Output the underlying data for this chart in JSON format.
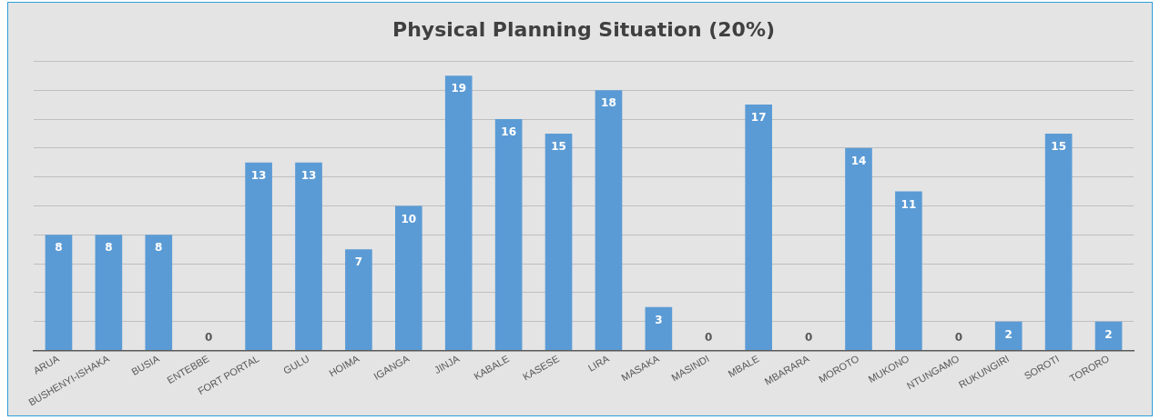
{
  "chart_data": {
    "type": "bar",
    "title": "Physical Planning Situation (20%)",
    "categories": [
      "ARUA",
      "BUSHENYI-ISHAKA",
      "BUSIA",
      "ENTEBBE",
      "FORT PORTAL",
      "GULU",
      "HOIMA",
      "IGANGA",
      "JINJA",
      "KABALE",
      "KASESE",
      "LIRA",
      "MASAKA",
      "MASINDI",
      "MBALE",
      "MBARARA",
      "MOROTO",
      "MUKONO",
      "NTUNGAMO",
      "RUKUNGIRI",
      "SOROTI",
      "TORORO"
    ],
    "values": [
      8,
      8,
      8,
      0,
      13,
      13,
      7,
      10,
      19,
      16,
      15,
      18,
      3,
      0,
      17,
      0,
      14,
      11,
      0,
      2,
      15,
      2
    ],
    "color": "#5b9bd5",
    "ylim": [
      0,
      20
    ],
    "yticks": [
      {
        "value": 0,
        "label": null
      },
      {
        "value": 2,
        "label": null
      },
      {
        "value": 4,
        "label": null
      },
      {
        "value": 6,
        "label": null
      },
      {
        "value": 8,
        "label": null
      },
      {
        "value": 10,
        "label": null
      },
      {
        "value": 12,
        "label": null
      },
      {
        "value": 14,
        "label": null
      },
      {
        "value": 16,
        "label": null
      },
      {
        "value": 18,
        "label": null
      },
      {
        "value": 20,
        "label": null
      }
    ],
    "grid": "y",
    "data_labels": true,
    "tick_labels": "x"
  }
}
